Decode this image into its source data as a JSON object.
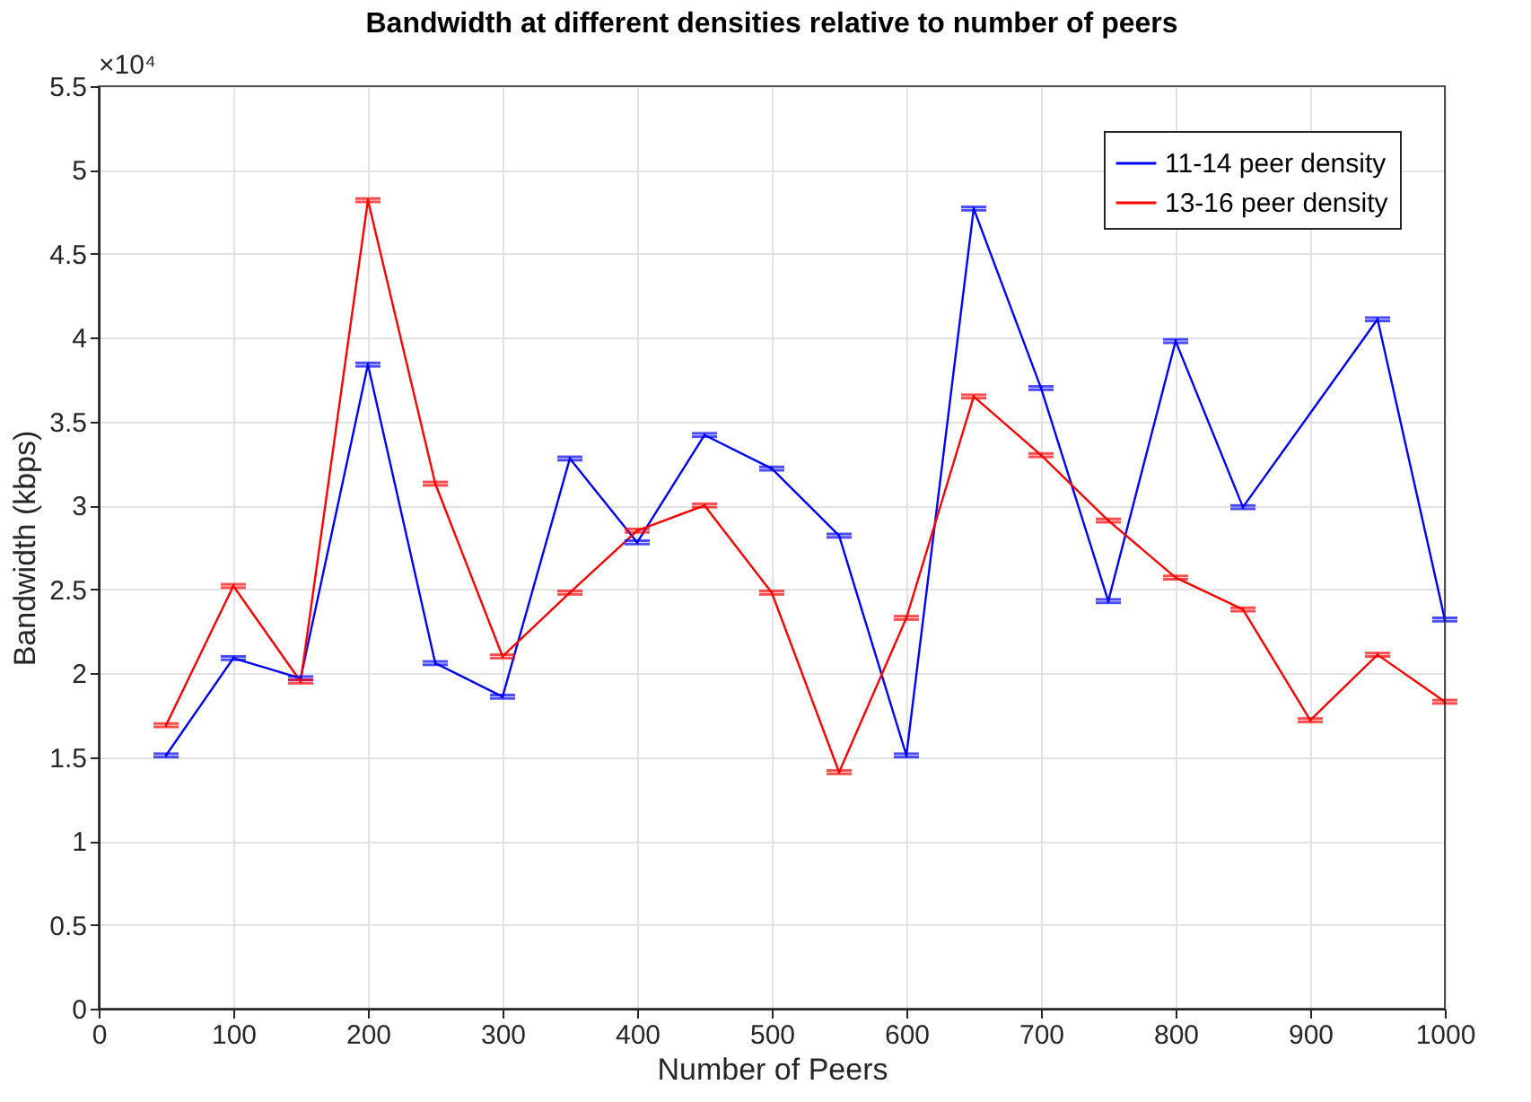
{
  "chart_data": {
    "type": "line",
    "title": "Bandwidth at different densities relative to number of peers",
    "xlabel": "Number of Peers",
    "ylabel": "Bandwidth (kbps)",
    "annotations": [
      "×10⁴"
    ],
    "xlim": [
      0,
      1000
    ],
    "xticks": [
      0,
      100,
      200,
      300,
      400,
      500,
      600,
      700,
      800,
      900,
      1000
    ],
    "ylim": [
      0,
      5.5
    ],
    "yticks": [
      0,
      0.5,
      1,
      1.5,
      2,
      2.5,
      3,
      3.5,
      4,
      4.5,
      5,
      5.5
    ],
    "grid": true,
    "legend": "top right",
    "marker": "none",
    "line_style": "solid",
    "series": [
      {
        "name": "11-14 peer density",
        "color": "#0000ff",
        "x": [
          50,
          100,
          150,
          200,
          250,
          300,
          350,
          400,
          450,
          500,
          550,
          600,
          650,
          700,
          750,
          800,
          850,
          950,
          1000
        ],
        "values": [
          1.51,
          2.09,
          1.97,
          3.84,
          2.06,
          1.86,
          3.28,
          2.78,
          3.42,
          3.22,
          2.82,
          1.51,
          4.77,
          3.7,
          2.43,
          3.98,
          2.99,
          4.11,
          2.32
        ],
        "errors": [
          0.01,
          0.01,
          0.01,
          0.01,
          0.01,
          0.01,
          0.01,
          0.01,
          0.01,
          0.01,
          0.01,
          0.01,
          0.01,
          0.01,
          0.01,
          0.01,
          0.01,
          0.01,
          0.01
        ]
      },
      {
        "name": "13-16 peer density",
        "color": "#ff0000",
        "x": [
          50,
          100,
          150,
          200,
          250,
          300,
          350,
          400,
          450,
          500,
          550,
          600,
          650,
          700,
          750,
          800,
          850,
          900,
          950,
          1000
        ],
        "values": [
          1.69,
          2.52,
          1.95,
          4.82,
          3.13,
          2.1,
          2.48,
          2.85,
          3.0,
          2.48,
          1.41,
          2.33,
          3.65,
          3.3,
          2.91,
          2.57,
          2.38,
          1.72,
          2.11,
          1.83
        ],
        "errors": [
          0.01,
          0.01,
          0.01,
          0.01,
          0.01,
          0.01,
          0.01,
          0.01,
          0.01,
          0.01,
          0.01,
          0.01,
          0.01,
          0.01,
          0.01,
          0.01,
          0.01,
          0.01,
          0.01,
          0.01
        ]
      }
    ]
  }
}
